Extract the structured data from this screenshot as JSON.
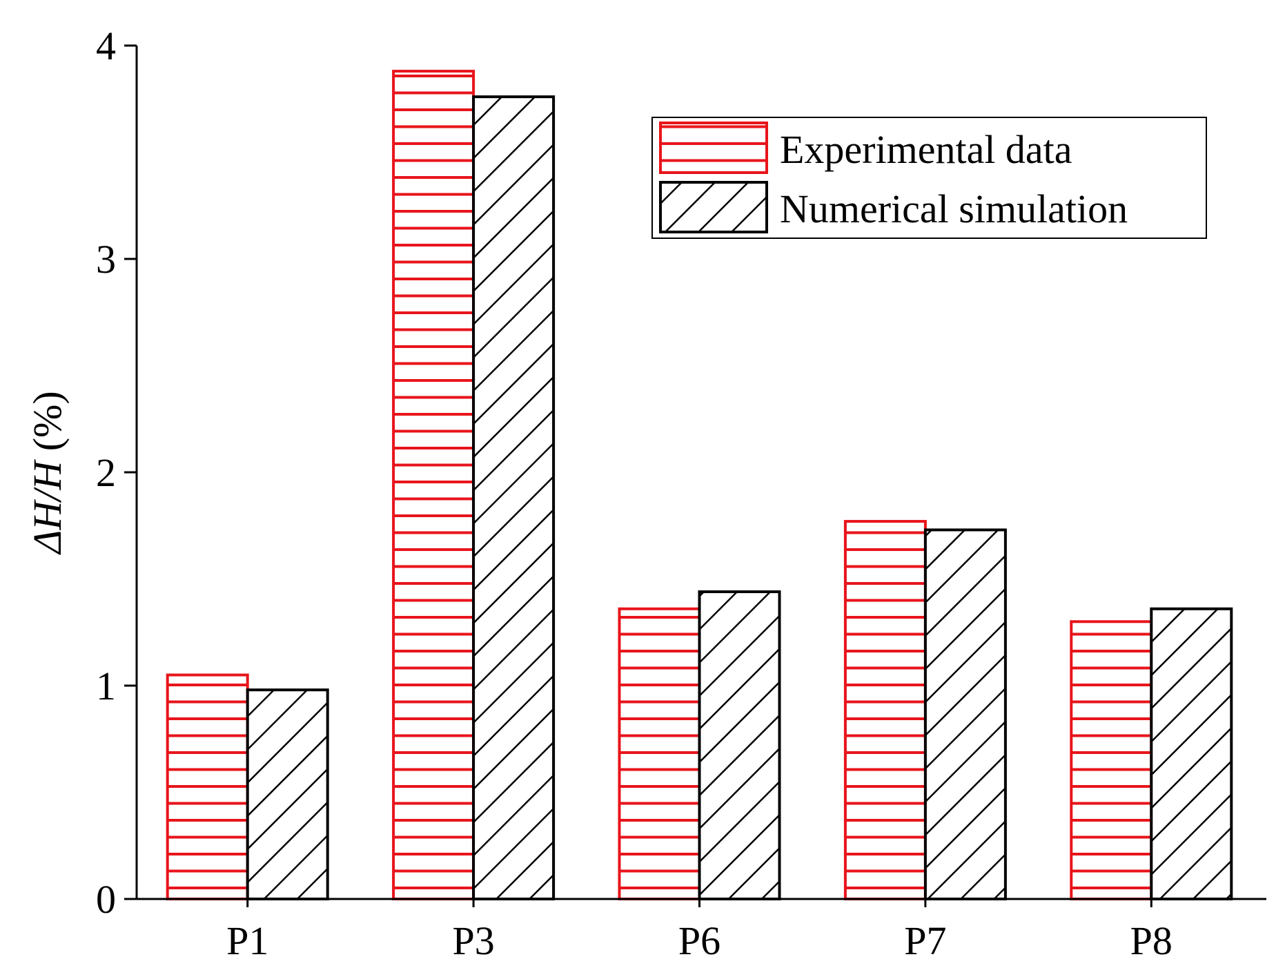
{
  "chart_data": {
    "type": "bar",
    "title": "",
    "xlabel": "",
    "ylabel": "ΔH/H (%)",
    "ylabel_parts": {
      "italic": "ΔH/H",
      "plain": " (%)"
    },
    "categories": [
      "P1",
      "P3",
      "P6",
      "P7",
      "P8"
    ],
    "series": [
      {
        "name": "Experimental data",
        "values": [
          1.05,
          3.88,
          1.36,
          1.77,
          1.3
        ],
        "color": "#e8141b",
        "pattern": "horizontal-lines"
      },
      {
        "name": "Numerical simulation",
        "values": [
          0.98,
          3.76,
          1.44,
          1.73,
          1.36
        ],
        "color": "#000000",
        "pattern": "diagonal-hatch"
      }
    ],
    "ylim": [
      0,
      4
    ],
    "yticks": [
      0,
      1,
      2,
      3,
      4
    ],
    "grid": false,
    "legend_position": "top-right"
  }
}
